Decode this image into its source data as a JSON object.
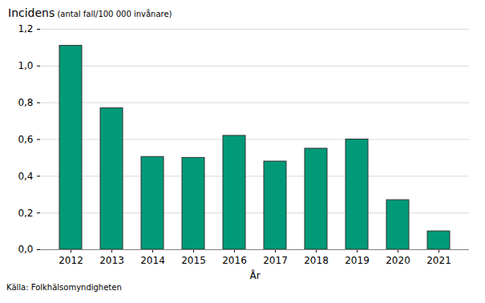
{
  "chart_data": {
    "type": "bar",
    "ylabel": "Incidens (antal fall/100 000 invånare)",
    "xlabel": "År",
    "caption": "Källa: Folkhälsomyndigheten",
    "categories": [
      "2012",
      "2013",
      "2014",
      "2015",
      "2016",
      "2017",
      "2018",
      "2019",
      "2020",
      "2021"
    ],
    "values": [
      1.11,
      0.77,
      0.505,
      0.5,
      0.62,
      0.48,
      0.55,
      0.6,
      0.27,
      0.1
    ],
    "color": "#009a78",
    "ylim": [
      0,
      1.2
    ],
    "yticks": [
      {
        "value": 0,
        "label": "0,0"
      },
      {
        "value": 0.2,
        "label": "0,2"
      },
      {
        "value": 0.4,
        "label": "0,4"
      },
      {
        "value": 0.6,
        "label": "0,6"
      },
      {
        "value": 0.8,
        "label": "0,8"
      },
      {
        "value": 1.0,
        "label": "1,0"
      },
      {
        "value": 1.2,
        "label": "1,2"
      }
    ],
    "grid": true
  }
}
